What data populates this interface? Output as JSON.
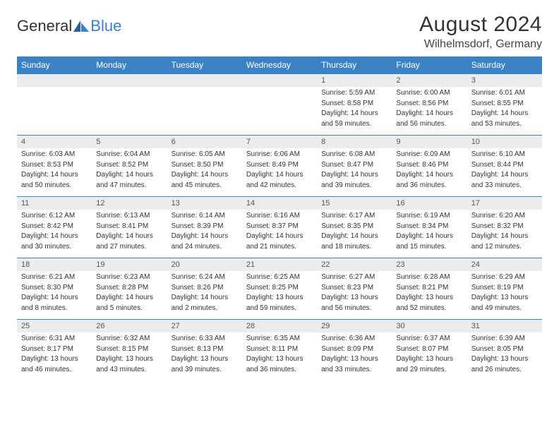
{
  "brand": {
    "part1": "General",
    "part2": "Blue"
  },
  "title": "August 2024",
  "location": "Wilhelmsdorf, Germany",
  "colors": {
    "accent": "#3b82c4",
    "header_bg": "#3b82c4",
    "daynum_bg": "#ececec"
  },
  "days_of_week": [
    "Sunday",
    "Monday",
    "Tuesday",
    "Wednesday",
    "Thursday",
    "Friday",
    "Saturday"
  ],
  "weeks": [
    [
      null,
      null,
      null,
      null,
      {
        "n": "1",
        "sr": "5:59 AM",
        "ss": "8:58 PM",
        "dl": "14 hours and 59 minutes."
      },
      {
        "n": "2",
        "sr": "6:00 AM",
        "ss": "8:56 PM",
        "dl": "14 hours and 56 minutes."
      },
      {
        "n": "3",
        "sr": "6:01 AM",
        "ss": "8:55 PM",
        "dl": "14 hours and 53 minutes."
      }
    ],
    [
      {
        "n": "4",
        "sr": "6:03 AM",
        "ss": "8:53 PM",
        "dl": "14 hours and 50 minutes."
      },
      {
        "n": "5",
        "sr": "6:04 AM",
        "ss": "8:52 PM",
        "dl": "14 hours and 47 minutes."
      },
      {
        "n": "6",
        "sr": "6:05 AM",
        "ss": "8:50 PM",
        "dl": "14 hours and 45 minutes."
      },
      {
        "n": "7",
        "sr": "6:06 AM",
        "ss": "8:49 PM",
        "dl": "14 hours and 42 minutes."
      },
      {
        "n": "8",
        "sr": "6:08 AM",
        "ss": "8:47 PM",
        "dl": "14 hours and 39 minutes."
      },
      {
        "n": "9",
        "sr": "6:09 AM",
        "ss": "8:46 PM",
        "dl": "14 hours and 36 minutes."
      },
      {
        "n": "10",
        "sr": "6:10 AM",
        "ss": "8:44 PM",
        "dl": "14 hours and 33 minutes."
      }
    ],
    [
      {
        "n": "11",
        "sr": "6:12 AM",
        "ss": "8:42 PM",
        "dl": "14 hours and 30 minutes."
      },
      {
        "n": "12",
        "sr": "6:13 AM",
        "ss": "8:41 PM",
        "dl": "14 hours and 27 minutes."
      },
      {
        "n": "13",
        "sr": "6:14 AM",
        "ss": "8:39 PM",
        "dl": "14 hours and 24 minutes."
      },
      {
        "n": "14",
        "sr": "6:16 AM",
        "ss": "8:37 PM",
        "dl": "14 hours and 21 minutes."
      },
      {
        "n": "15",
        "sr": "6:17 AM",
        "ss": "8:35 PM",
        "dl": "14 hours and 18 minutes."
      },
      {
        "n": "16",
        "sr": "6:19 AM",
        "ss": "8:34 PM",
        "dl": "14 hours and 15 minutes."
      },
      {
        "n": "17",
        "sr": "6:20 AM",
        "ss": "8:32 PM",
        "dl": "14 hours and 12 minutes."
      }
    ],
    [
      {
        "n": "18",
        "sr": "6:21 AM",
        "ss": "8:30 PM",
        "dl": "14 hours and 8 minutes."
      },
      {
        "n": "19",
        "sr": "6:23 AM",
        "ss": "8:28 PM",
        "dl": "14 hours and 5 minutes."
      },
      {
        "n": "20",
        "sr": "6:24 AM",
        "ss": "8:26 PM",
        "dl": "14 hours and 2 minutes."
      },
      {
        "n": "21",
        "sr": "6:25 AM",
        "ss": "8:25 PM",
        "dl": "13 hours and 59 minutes."
      },
      {
        "n": "22",
        "sr": "6:27 AM",
        "ss": "8:23 PM",
        "dl": "13 hours and 56 minutes."
      },
      {
        "n": "23",
        "sr": "6:28 AM",
        "ss": "8:21 PM",
        "dl": "13 hours and 52 minutes."
      },
      {
        "n": "24",
        "sr": "6:29 AM",
        "ss": "8:19 PM",
        "dl": "13 hours and 49 minutes."
      }
    ],
    [
      {
        "n": "25",
        "sr": "6:31 AM",
        "ss": "8:17 PM",
        "dl": "13 hours and 46 minutes."
      },
      {
        "n": "26",
        "sr": "6:32 AM",
        "ss": "8:15 PM",
        "dl": "13 hours and 43 minutes."
      },
      {
        "n": "27",
        "sr": "6:33 AM",
        "ss": "8:13 PM",
        "dl": "13 hours and 39 minutes."
      },
      {
        "n": "28",
        "sr": "6:35 AM",
        "ss": "8:11 PM",
        "dl": "13 hours and 36 minutes."
      },
      {
        "n": "29",
        "sr": "6:36 AM",
        "ss": "8:09 PM",
        "dl": "13 hours and 33 minutes."
      },
      {
        "n": "30",
        "sr": "6:37 AM",
        "ss": "8:07 PM",
        "dl": "13 hours and 29 minutes."
      },
      {
        "n": "31",
        "sr": "6:39 AM",
        "ss": "8:05 PM",
        "dl": "13 hours and 26 minutes."
      }
    ]
  ],
  "labels": {
    "sunrise": "Sunrise:",
    "sunset": "Sunset:",
    "daylight": "Daylight:"
  }
}
